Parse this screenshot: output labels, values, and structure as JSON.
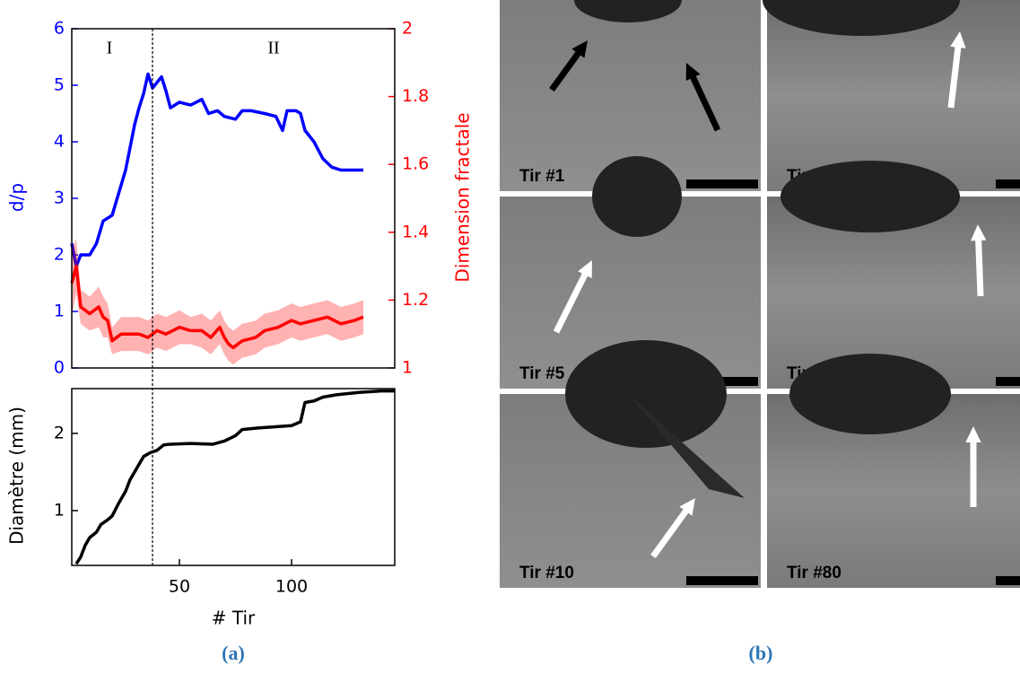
{
  "chart_data": [
    {
      "type": "line",
      "ylabel": "d/p",
      "y2label": "Dimension fractale",
      "xlim": [
        2,
        146
      ],
      "ylim": [
        0,
        6
      ],
      "yticks": [
        0,
        1,
        2,
        3,
        4,
        5,
        6
      ],
      "y2lim": [
        1,
        2
      ],
      "y2ticks": [
        1,
        1.2,
        1.4,
        1.6,
        1.8,
        2
      ],
      "annotations": [
        "I",
        "II"
      ],
      "vline": 38,
      "series": [
        {
          "name": "d/p",
          "color": "#0000ff",
          "axis": "y",
          "x": [
            2,
            4,
            6,
            10,
            13,
            16,
            20,
            23,
            26,
            28,
            30,
            32,
            34,
            36,
            38,
            40,
            42,
            44,
            46,
            50,
            55,
            60,
            63,
            67,
            70,
            75,
            78,
            82,
            88,
            93,
            96,
            98,
            102,
            104,
            106,
            110,
            114,
            118,
            122,
            128,
            132
          ],
          "values": [
            2.2,
            1.8,
            2.0,
            2.0,
            2.2,
            2.6,
            2.7,
            3.1,
            3.5,
            3.9,
            4.3,
            4.6,
            4.85,
            5.2,
            4.95,
            5.05,
            5.15,
            4.9,
            4.6,
            4.7,
            4.65,
            4.75,
            4.5,
            4.55,
            4.45,
            4.4,
            4.55,
            4.55,
            4.5,
            4.45,
            4.2,
            4.55,
            4.55,
            4.5,
            4.2,
            4.0,
            3.7,
            3.55,
            3.5,
            3.5,
            3.5
          ]
        },
        {
          "name": "Dimension fractale",
          "color": "#ff0000",
          "axis": "y2",
          "x": [
            2,
            4,
            6,
            10,
            14,
            16,
            18,
            20,
            24,
            28,
            32,
            36,
            40,
            44,
            50,
            55,
            60,
            64,
            68,
            70,
            72,
            74,
            78,
            84,
            88,
            94,
            100,
            104,
            110,
            116,
            122,
            128,
            132
          ],
          "values": [
            1.25,
            1.3,
            1.18,
            1.16,
            1.18,
            1.15,
            1.14,
            1.08,
            1.1,
            1.1,
            1.1,
            1.09,
            1.11,
            1.1,
            1.12,
            1.11,
            1.11,
            1.09,
            1.12,
            1.09,
            1.07,
            1.06,
            1.08,
            1.09,
            1.11,
            1.12,
            1.14,
            1.13,
            1.14,
            1.15,
            1.13,
            1.14,
            1.15
          ],
          "errors": [
            0.1,
            0.08,
            0.05,
            0.05,
            0.06,
            0.06,
            0.05,
            0.04,
            0.05,
            0.05,
            0.05,
            0.05,
            0.05,
            0.05,
            0.05,
            0.04,
            0.05,
            0.05,
            0.05,
            0.05,
            0.05,
            0.05,
            0.05,
            0.05,
            0.05,
            0.05,
            0.05,
            0.05,
            0.05,
            0.05,
            0.05,
            0.05,
            0.05
          ]
        }
      ]
    },
    {
      "type": "line",
      "ylabel": "Diamètre (mm)",
      "xlabel": "# Tir",
      "xlim": [
        2,
        146
      ],
      "xticks": [
        50,
        100
      ],
      "ylim": [
        0.29,
        2.58
      ],
      "yticks": [
        1,
        2
      ],
      "series": [
        {
          "name": "Diamètre",
          "color": "#000000",
          "x": [
            4,
            6,
            8,
            10,
            13,
            15,
            18,
            20,
            23,
            26,
            28,
            31,
            34,
            37,
            40,
            43,
            46,
            55,
            65,
            70,
            75,
            78,
            85,
            90,
            100,
            104,
            106,
            110,
            114,
            120,
            130,
            140,
            146
          ],
          "values": [
            0.31,
            0.4,
            0.55,
            0.65,
            0.72,
            0.82,
            0.88,
            0.93,
            1.1,
            1.25,
            1.4,
            1.55,
            1.7,
            1.75,
            1.78,
            1.85,
            1.86,
            1.87,
            1.86,
            1.9,
            1.97,
            2.05,
            2.07,
            2.08,
            2.1,
            2.15,
            2.4,
            2.42,
            2.47,
            2.5,
            2.53,
            2.55,
            2.55
          ]
        }
      ]
    }
  ],
  "images": [
    {
      "label": "Tir #1"
    },
    {
      "label": "Tir #30"
    },
    {
      "label": "Tir #5"
    },
    {
      "label": "Tir #39"
    },
    {
      "label": "Tir #10"
    },
    {
      "label": "Tir #80"
    }
  ],
  "captions": [
    "(a)",
    "(b)"
  ]
}
